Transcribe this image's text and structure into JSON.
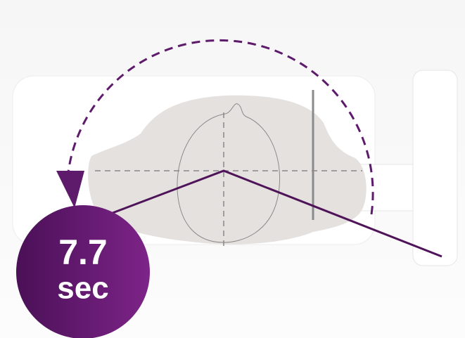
{
  "badge": {
    "value": "7.7",
    "unit": "sec"
  }
}
